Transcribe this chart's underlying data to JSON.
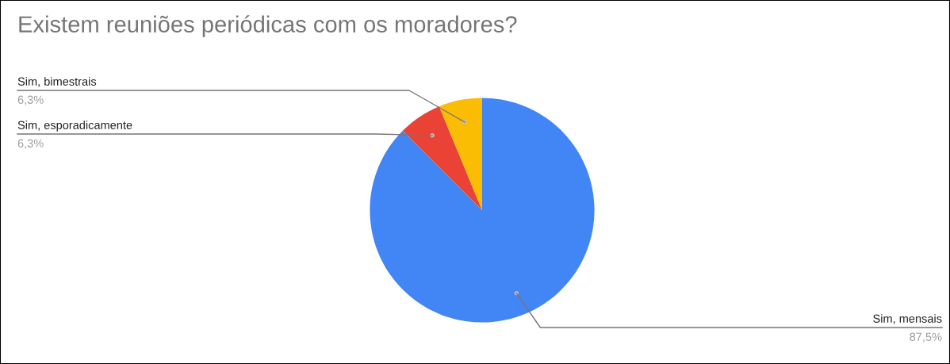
{
  "chart_data": {
    "type": "pie",
    "title": "Existem reuniões periódicas com os moradores?",
    "categories": [
      "Sim, mensais",
      "Sim, esporadicamente",
      "Sim, bimestrais"
    ],
    "values": [
      87.5,
      6.25,
      6.25
    ],
    "value_labels": [
      "87,5%",
      "6,3%",
      "6,3%"
    ],
    "colors": [
      "#4285f4",
      "#ea4335",
      "#fbbc04"
    ]
  }
}
